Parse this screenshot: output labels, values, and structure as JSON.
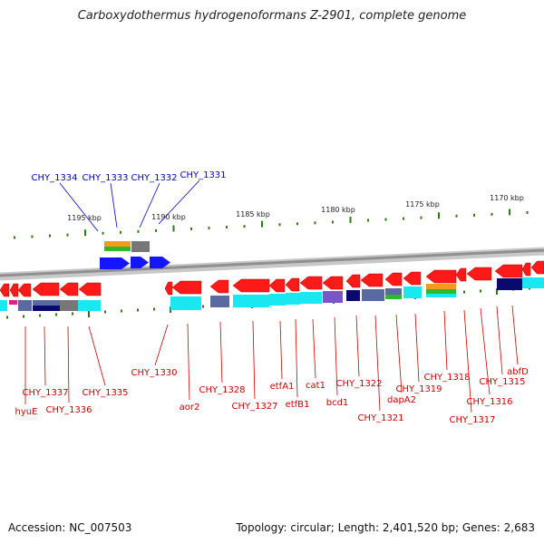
{
  "title": "Carboxydothermus hydrogenoformans Z-2901, complete genome",
  "footer": {
    "accession": "Accession: NC_007503",
    "stats": "Topology: circular; Length: 2,401,520 bp; Genes: 2,683"
  },
  "colors": {
    "top_label": "#0000cc",
    "bottom_label": "#cc0000",
    "tick": "#2e7d12",
    "backbone": "#909090",
    "gene_red": "#ff1a1a",
    "gene_blue": "#1515ff",
    "cds_cyan": "#19e8f0",
    "dark_navy": "#0a0a6e",
    "slate": "#5a6aa0",
    "gray": "#777777",
    "orange": "#f59a1a",
    "green": "#2eb82e",
    "violet": "#7a55c8"
  },
  "scale_labels": [
    "1195 kbp",
    "1190 kbp",
    "1185 kbp",
    "1180 kbp",
    "1175 kbp",
    "1170 kbp"
  ],
  "top_genes": [
    "CHY_1334",
    "CHY_1333",
    "CHY_1332",
    "CHY_1331"
  ],
  "bottom_genes": [
    "CHY_1337",
    "hyuE",
    "CHY_1336",
    "CHY_1335",
    "CHY_1330",
    "aor2",
    "CHY_1328",
    "CHY_1327",
    "etfA1",
    "etfB1",
    "cat1",
    "bcd1",
    "CHY_1322",
    "CHY_1321",
    "dapA2",
    "CHY_1319",
    "CHY_1318",
    "CHY_1317",
    "CHY_1316",
    "CHY_1315",
    "abfD"
  ]
}
